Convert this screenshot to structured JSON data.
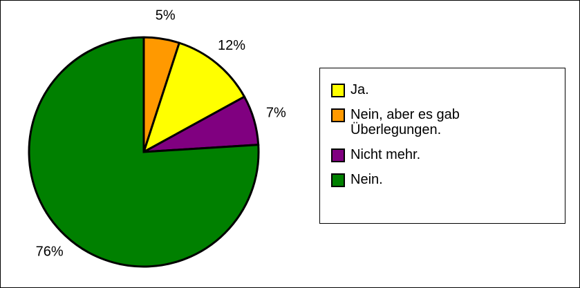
{
  "chart_data": {
    "type": "pie",
    "categories": [
      "Ja.",
      "Nein, aber es gab Überlegungen.",
      "Nicht mehr.",
      "Nein."
    ],
    "values": [
      12,
      5,
      7,
      76
    ],
    "value_labels": [
      "12%",
      "5%",
      "7%",
      "76%"
    ],
    "colors": [
      "#ffff00",
      "#ff9900",
      "#800080",
      "#008000"
    ],
    "legend": "right"
  }
}
